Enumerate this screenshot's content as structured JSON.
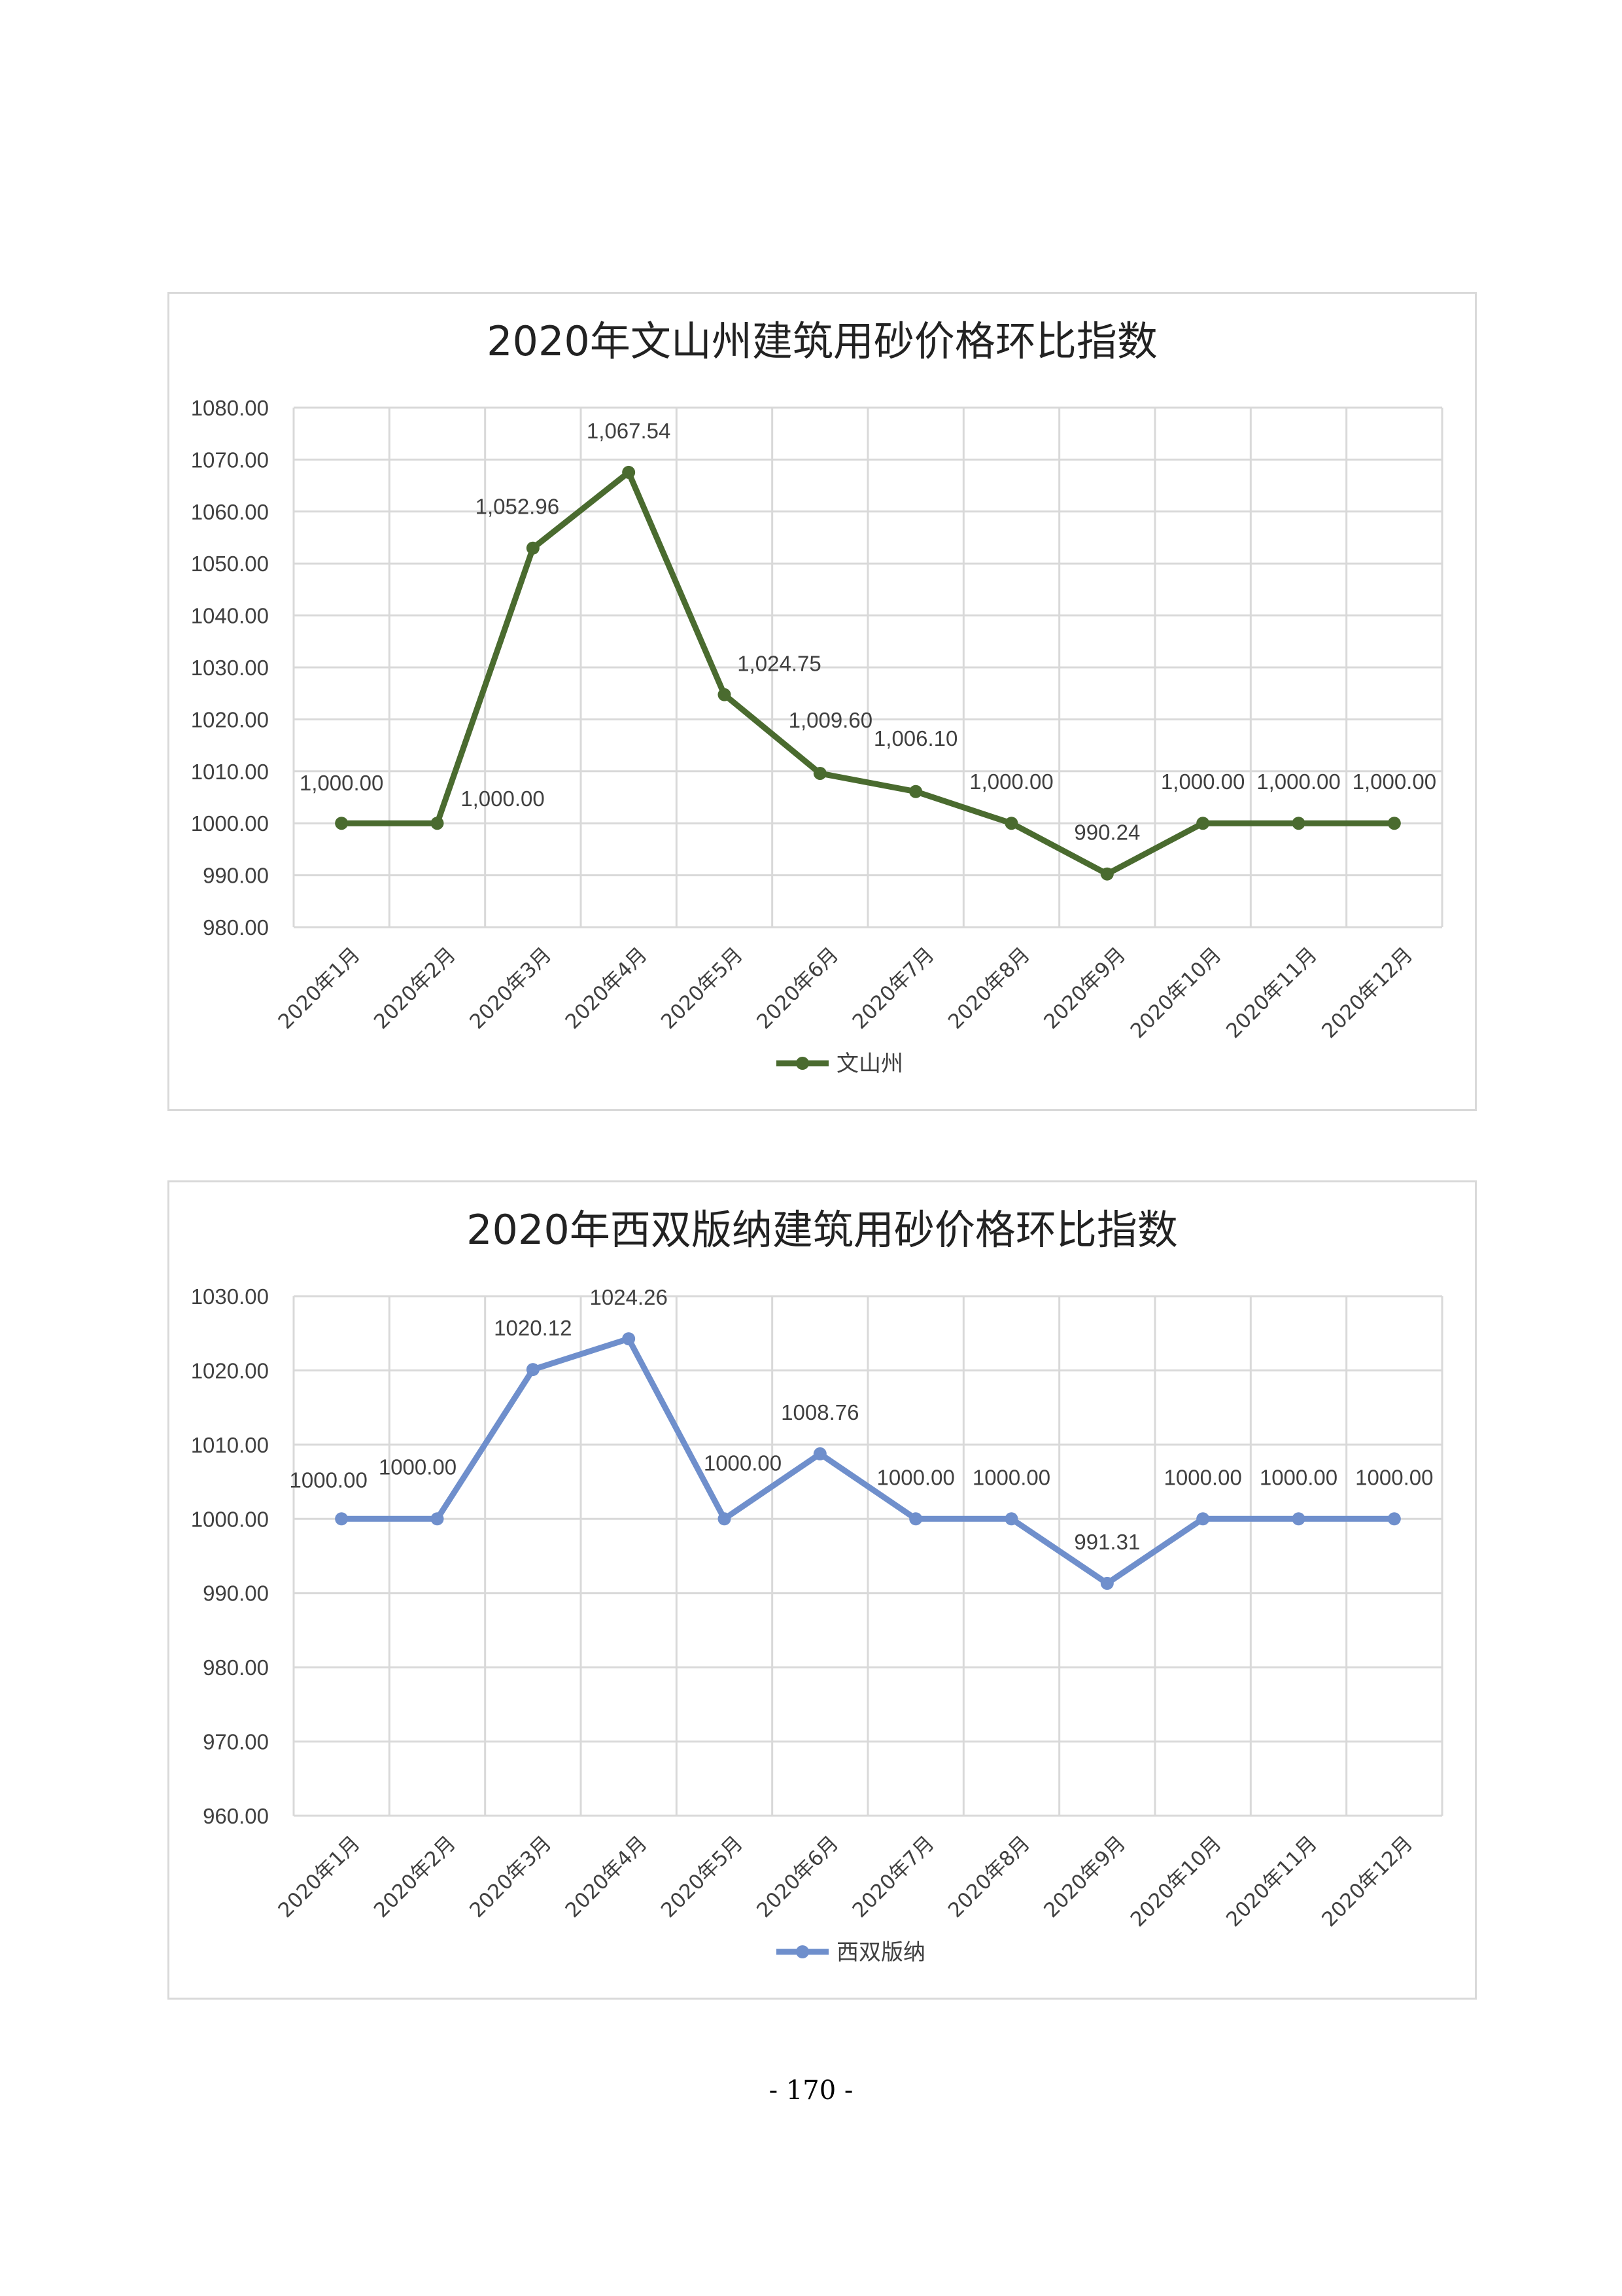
{
  "chart_data": [
    {
      "type": "line",
      "title": "2020年文山州建筑用砂价格环比指数",
      "categories": [
        "2020年1月",
        "2020年2月",
        "2020年3月",
        "2020年4月",
        "2020年5月",
        "2020年6月",
        "2020年7月",
        "2020年8月",
        "2020年9月",
        "2020年10月",
        "2020年11月",
        "2020年12月"
      ],
      "series": [
        {
          "name": "文山州",
          "values": [
            1000.0,
            1000.0,
            1052.96,
            1067.54,
            1024.75,
            1009.6,
            1006.1,
            1000.0,
            990.24,
            1000.0,
            1000.0,
            1000.0
          ],
          "labels": [
            "1,000.00",
            "1,000.00",
            "1,052.96",
            "1,067.54",
            "1,024.75",
            "1,009.60",
            "1,006.10",
            "1,000.00",
            "990.24",
            "1,000.00",
            "1,000.00",
            "1,000.00"
          ],
          "color": "#4a6b2f"
        }
      ],
      "ylim": [
        980,
        1080
      ],
      "yticks": [
        "980.00",
        "990.00",
        "1000.00",
        "1010.00",
        "1020.00",
        "1030.00",
        "1040.00",
        "1050.00",
        "1060.00",
        "1070.00",
        "1080.00"
      ],
      "grid": true,
      "legend": "bottom"
    },
    {
      "type": "line",
      "title": "2020年西双版纳建筑用砂价格环比指数",
      "categories": [
        "2020年1月",
        "2020年2月",
        "2020年3月",
        "2020年4月",
        "2020年5月",
        "2020年6月",
        "2020年7月",
        "2020年8月",
        "2020年9月",
        "2020年10月",
        "2020年11月",
        "2020年12月"
      ],
      "series": [
        {
          "name": "西双版纳",
          "values": [
            1000.0,
            1000.0,
            1020.12,
            1024.26,
            1000.0,
            1008.76,
            1000.0,
            1000.0,
            991.31,
            1000.0,
            1000.0,
            1000.0
          ],
          "labels": [
            "1000.00",
            "1000.00",
            "1020.12",
            "1024.26",
            "1000.00",
            "1008.76",
            "1000.00",
            "1000.00",
            "991.31",
            "1000.00",
            "1000.00",
            "1000.00"
          ],
          "color": "#6f8fcc"
        }
      ],
      "ylim": [
        960,
        1030
      ],
      "yticks": [
        "960.00",
        "970.00",
        "980.00",
        "990.00",
        "1000.00",
        "1010.00",
        "1020.00",
        "1030.00"
      ],
      "grid": true,
      "legend": "bottom"
    }
  ],
  "page_number": "- 170 -"
}
